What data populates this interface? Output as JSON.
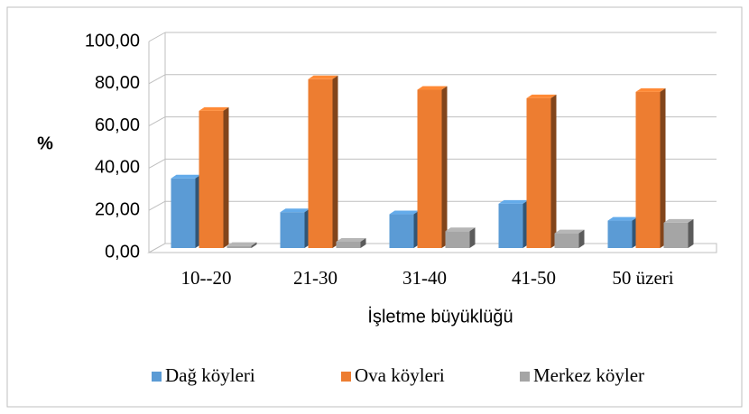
{
  "chart_data": {
    "type": "bar",
    "y_label": "%",
    "x_label": "İşletme büyüklüğü",
    "categories": [
      "10--20",
      "21-30",
      "31-40",
      "41-50",
      "50 üzeri"
    ],
    "series": [
      {
        "name": "Dağ köyleri",
        "color": "#5b9bd5",
        "values": [
          33,
          17,
          16,
          21,
          13
        ]
      },
      {
        "name": "Ova köyleri",
        "color": "#ed7d31",
        "values": [
          65,
          80,
          75,
          71,
          74
        ]
      },
      {
        "name": "Merkez köyler",
        "color": "#a5a5a5",
        "values": [
          1,
          3,
          8,
          7,
          12
        ]
      }
    ],
    "ylim": [
      0,
      100
    ],
    "yticks": [
      {
        "value": 0,
        "label": "0,00"
      },
      {
        "value": 20,
        "label": "20,00"
      },
      {
        "value": 40,
        "label": "40,00"
      },
      {
        "value": 60,
        "label": "60,00"
      },
      {
        "value": 80,
        "label": "80,00"
      },
      {
        "value": 100,
        "label": "100,00"
      }
    ],
    "grid": true,
    "legend": "bottom"
  }
}
